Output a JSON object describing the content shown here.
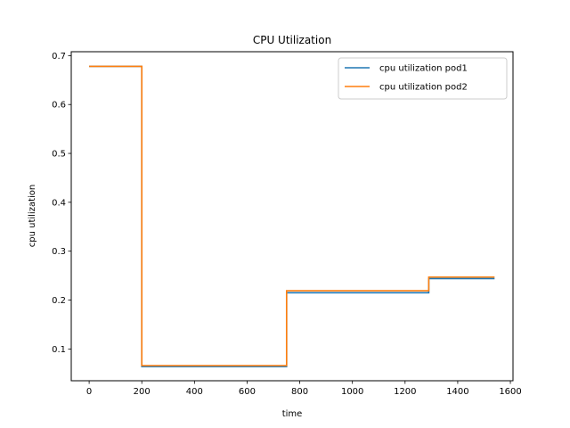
{
  "chart_data": {
    "type": "line",
    "title": "CPU Utilization",
    "xlabel": "time",
    "ylabel": "cpu utilization",
    "xlim": [
      -68,
      1610
    ],
    "ylim": [
      0.035,
      0.708
    ],
    "xticks": [
      0,
      200,
      400,
      600,
      800,
      1000,
      1200,
      1400,
      1600
    ],
    "yticks": [
      0.1,
      0.2,
      0.3,
      0.4,
      0.5,
      0.6,
      0.7
    ],
    "grid": false,
    "legend_position": "upper-right",
    "series": [
      {
        "name": "cpu utilization pod1",
        "color": "#1f77b4",
        "x": [
          0,
          200,
          200,
          750,
          750,
          1290,
          1290,
          1540
        ],
        "y": [
          0.678,
          0.678,
          0.064,
          0.064,
          0.215,
          0.215,
          0.244,
          0.244
        ]
      },
      {
        "name": "cpu utilization pod2",
        "color": "#ff7f0e",
        "x": [
          0,
          200,
          200,
          750,
          750,
          1290,
          1290,
          1540
        ],
        "y": [
          0.678,
          0.678,
          0.066,
          0.066,
          0.219,
          0.219,
          0.247,
          0.247
        ]
      }
    ]
  }
}
